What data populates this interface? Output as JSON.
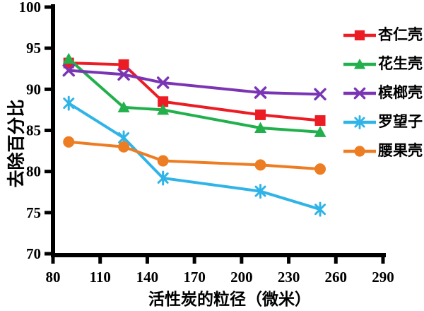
{
  "figure": {
    "background": "#ffffff",
    "axis_color": "#000000"
  },
  "chart_data": {
    "type": "line",
    "title": "",
    "xlabel": "活性炭的粒径（微米）",
    "ylabel": "去除百分比",
    "xlim": [
      80,
      290
    ],
    "ylim": [
      70,
      100
    ],
    "x_ticks": [
      80,
      110,
      140,
      170,
      200,
      230,
      260,
      290
    ],
    "y_ticks": [
      100,
      95,
      90,
      85,
      80,
      75,
      70
    ],
    "grid": false,
    "legend_position": "right",
    "x": [
      90,
      125,
      150,
      212,
      250
    ],
    "series": [
      {
        "name": "杏仁壳",
        "marker": "square",
        "color": "#EC1C24",
        "values": [
          93.2,
          93.0,
          88.5,
          86.9,
          86.2
        ]
      },
      {
        "name": "花生壳",
        "marker": "triangle",
        "color": "#22B04C",
        "values": [
          93.7,
          87.8,
          87.5,
          85.3,
          84.8
        ]
      },
      {
        "name": "槟榔壳",
        "marker": "x",
        "color": "#7A35B5",
        "values": [
          92.3,
          91.8,
          90.8,
          89.6,
          89.4
        ]
      },
      {
        "name": "罗望子",
        "marker": "asterisk",
        "color": "#30B4E8",
        "values": [
          88.3,
          84.1,
          79.2,
          77.6,
          75.4
        ]
      },
      {
        "name": "腰果壳",
        "marker": "circle",
        "color": "#ED7D22",
        "values": [
          83.6,
          83.0,
          81.3,
          80.8,
          80.3
        ]
      }
    ]
  }
}
